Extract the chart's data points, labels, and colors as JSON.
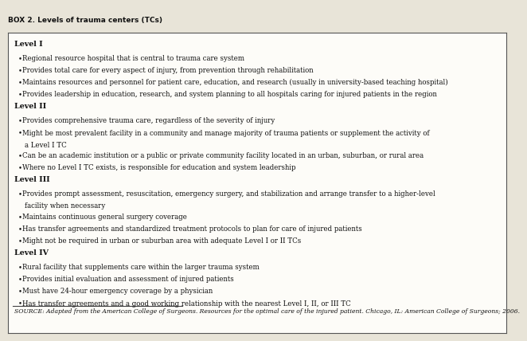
{
  "box_title": "BOX 2. Levels of trauma centers (TCs)",
  "page_bg": "#e8e4d8",
  "box_bg": "#fdfcf8",
  "border_color": "#555555",
  "text_color": "#111111",
  "sections": [
    {
      "heading": "Level I",
      "bullets": [
        "Regional resource hospital that is central to trauma care system",
        "Provides total care for every aspect of injury, from prevention through rehabilitation",
        "Maintains resources and personnel for patient care, education, and research (usually in university-based teaching hospital)",
        "Provides leadership in education, research, and system planning to all hospitals caring for injured patients in the region"
      ]
    },
    {
      "heading": "Level II",
      "bullets": [
        "Provides comprehensive trauma care, regardless of the severity of injury",
        "Might be most prevalent facility in a community and manage majority of trauma patients or supplement the activity of\n  a Level I TC",
        "Can be an academic institution or a public or private community facility located in an urban, suburban, or rural area",
        "Where no Level I TC exists, is responsible for education and system leadership"
      ]
    },
    {
      "heading": "Level III",
      "bullets": [
        "Provides prompt assessment, resuscitation, emergency surgery, and stabilization and arrange transfer to a higher-level\n  facility when necessary",
        "Maintains continuous general surgery coverage",
        "Has transfer agreements and standardized treatment protocols to plan for care of injured patients",
        "Might not be required in urban or suburban area with adequate Level I or II TCs"
      ]
    },
    {
      "heading": "Level IV",
      "bullets": [
        "Rural facility that supplements care within the larger trauma system",
        "Provides initial evaluation and assessment of injured patients",
        "Must have 24-hour emergency coverage by a physician",
        "Has transfer agreements and a good working relationship with the nearest Level I, II, or III TC"
      ]
    }
  ],
  "source_text": "SOURCE: Adapted from the American College of Surgeons. Resources for the optimal care of the injured patient. Chicago, IL: American College of Surgeons; 2006.",
  "title_fontsize": 6.5,
  "heading_fontsize": 6.8,
  "bullet_fontsize": 6.2,
  "source_fontsize": 5.5
}
